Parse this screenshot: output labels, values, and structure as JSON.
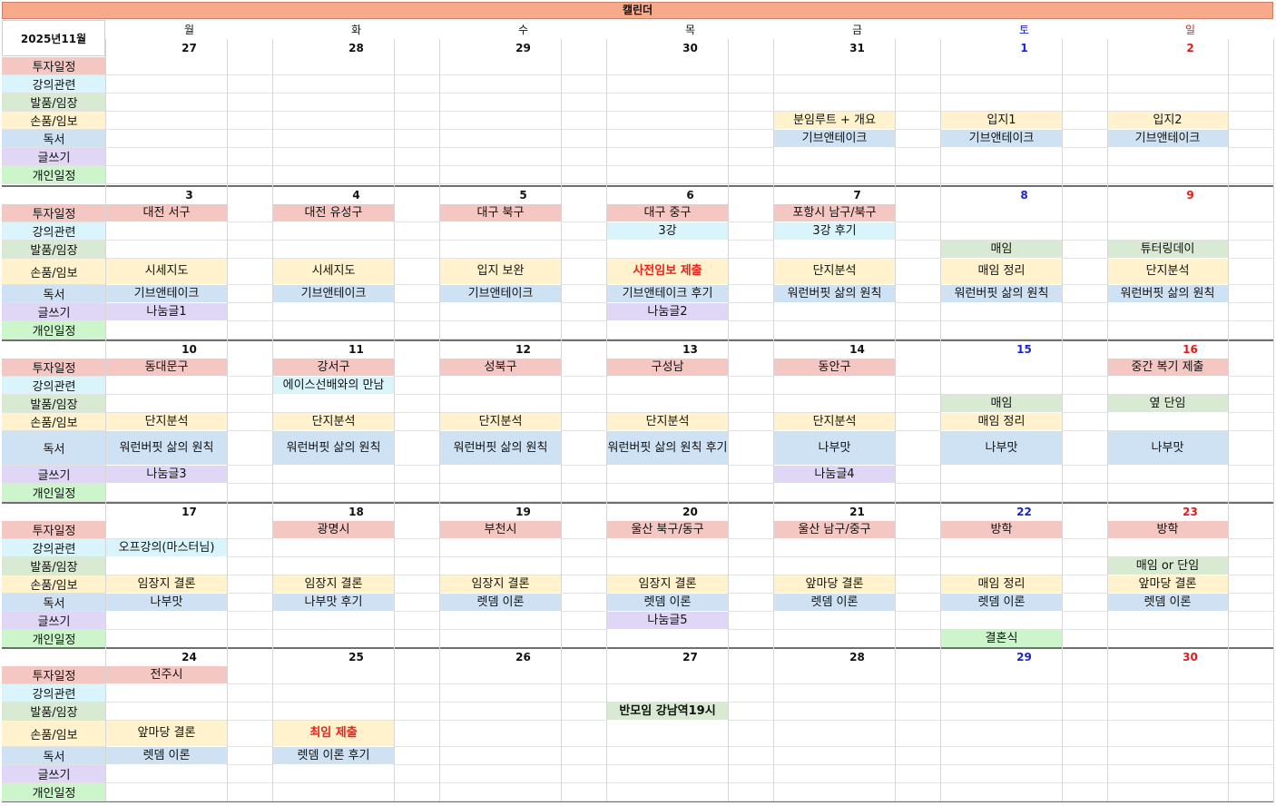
{
  "title": "캘린더",
  "month_label": "2025년11월",
  "weekdays": [
    "월",
    "화",
    "수",
    "목",
    "금",
    "토",
    "일"
  ],
  "categories": [
    "투자일정",
    "강의관련",
    "발품/임장",
    "손품/임보",
    "독서",
    "글쓰기",
    "개인일정"
  ],
  "colors": {
    "title_bar": "#f8a98a",
    "saturday": "#1a22d6",
    "sunday": "#e01b1b",
    "highlight_text": "#e8221e",
    "categories": [
      "#f4c7c3",
      "#d9f5fb",
      "#d9ead3",
      "#fff2cc",
      "#cfe2f3",
      "#e0d7f7",
      "#ccf5cc"
    ]
  },
  "weeks": [
    {
      "dates": [
        "27",
        "28",
        "29",
        "30",
        "31",
        "1",
        "2"
      ],
      "rows": [
        [
          "",
          "",
          "",
          "",
          "",
          "",
          ""
        ],
        [
          "",
          "",
          "",
          "",
          "",
          "",
          ""
        ],
        [
          "",
          "",
          "",
          "",
          "",
          "",
          ""
        ],
        [
          "",
          "",
          "",
          "",
          "분임루트 + 개요",
          "입지1",
          "입지2"
        ],
        [
          "",
          "",
          "",
          "",
          "기브앤테이크",
          "기브앤테이크",
          "기브앤테이크"
        ],
        [
          "",
          "",
          "",
          "",
          "",
          "",
          ""
        ],
        [
          "",
          "",
          "",
          "",
          "",
          "",
          ""
        ]
      ]
    },
    {
      "dates": [
        "3",
        "4",
        "5",
        "6",
        "7",
        "8",
        "9"
      ],
      "rows": [
        [
          "대전 서구",
          "대전 유성구",
          "대구 북구",
          "대구 중구",
          "포항시 남구/북구",
          "",
          ""
        ],
        [
          "",
          "",
          "",
          "3강",
          "3강 후기",
          "",
          ""
        ],
        [
          "",
          "",
          "",
          "",
          "",
          "매임",
          "튜터링데이"
        ],
        [
          "시세지도",
          "시세지도",
          "입지 보완",
          "사전임보 제출",
          "단지분석",
          "매임 정리",
          "단지분석"
        ],
        [
          "기브앤테이크",
          "기브앤테이크",
          "기브앤테이크",
          "기브앤테이크 후기",
          "워런버핏 삶의 원칙",
          "워런버핏 삶의 원칙",
          "워런버핏 삶의 원칙"
        ],
        [
          "나눔글1",
          "",
          "",
          "나눔글2",
          "",
          "",
          ""
        ],
        [
          "",
          "",
          "",
          "",
          "",
          "",
          ""
        ]
      ]
    },
    {
      "dates": [
        "10",
        "11",
        "12",
        "13",
        "14",
        "15",
        "16"
      ],
      "rows": [
        [
          "동대문구",
          "강서구",
          "성북구",
          "구성남",
          "동안구",
          "",
          "중간 복기 제출"
        ],
        [
          "",
          "에이스선배와의 만남",
          "",
          "",
          "",
          "",
          ""
        ],
        [
          "",
          "",
          "",
          "",
          "",
          "매임",
          "옆 단임"
        ],
        [
          "단지분석",
          "단지분석",
          "단지분석",
          "단지분석",
          "단지분석",
          "매임 정리",
          ""
        ],
        [
          "워런버핏 삶의 원칙",
          "워런버핏 삶의 원칙",
          "워런버핏 삶의 원칙",
          "워런버핏 삶의 원칙 후기",
          "나부맛",
          "나부맛",
          "나부맛"
        ],
        [
          "나눔글3",
          "",
          "",
          "",
          "나눔글4",
          "",
          ""
        ],
        [
          "",
          "",
          "",
          "",
          "",
          "",
          ""
        ]
      ]
    },
    {
      "dates": [
        "17",
        "18",
        "19",
        "20",
        "21",
        "22",
        "23"
      ],
      "rows": [
        [
          "",
          "광명시",
          "부천시",
          "울산 북구/동구",
          "울산 남구/중구",
          "방학",
          "방학"
        ],
        [
          "오프강의(마스터님)",
          "",
          "",
          "",
          "",
          "",
          ""
        ],
        [
          "",
          "",
          "",
          "",
          "",
          "",
          "매임 or 단임"
        ],
        [
          "임장지 결론",
          "임장지 결론",
          "임장지 결론",
          "임장지 결론",
          "앞마당 결론",
          "매임 정리",
          "앞마당 결론"
        ],
        [
          "나부맛",
          "나부맛 후기",
          "렛뎀 이론",
          "렛뎀 이론",
          "렛뎀 이론",
          "렛뎀 이론",
          "렛뎀 이론"
        ],
        [
          "",
          "",
          "",
          "나눔글5",
          "",
          "",
          ""
        ],
        [
          "",
          "",
          "",
          "",
          "",
          "결혼식",
          ""
        ]
      ]
    },
    {
      "dates": [
        "24",
        "25",
        "26",
        "27",
        "28",
        "29",
        "30"
      ],
      "rows": [
        [
          "전주시",
          "",
          "",
          "",
          "",
          "",
          ""
        ],
        [
          "",
          "",
          "",
          "",
          "",
          "",
          ""
        ],
        [
          "",
          "",
          "",
          "반모임 강남역19시",
          "",
          "",
          ""
        ],
        [
          "앞마당 결론",
          "최임 제출",
          "",
          "",
          "",
          "",
          ""
        ],
        [
          "렛뎀 이론",
          "렛뎀 이론 후기",
          "",
          "",
          "",
          "",
          ""
        ],
        [
          "",
          "",
          "",
          "",
          "",
          "",
          ""
        ],
        [
          "",
          "",
          "",
          "",
          "",
          "",
          ""
        ]
      ]
    }
  ],
  "highlights": [
    {
      "week": 1,
      "row": 3,
      "col": 3,
      "style": "red"
    },
    {
      "week": 4,
      "row": 2,
      "col": 3,
      "style": "bold"
    },
    {
      "week": 4,
      "row": 3,
      "col": 1,
      "style": "red"
    }
  ]
}
